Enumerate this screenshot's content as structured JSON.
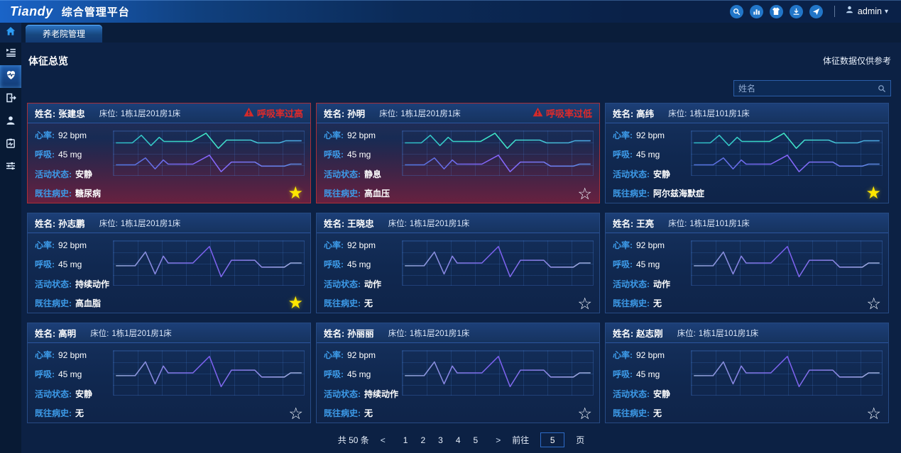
{
  "header": {
    "logo": "Tiandy",
    "product": "综合管理平台",
    "user": "admin",
    "icons": [
      "search",
      "bar-chart",
      "shirt",
      "download",
      "send"
    ]
  },
  "tabbar": {
    "active_tab": "养老院管理",
    "home_icon": "home"
  },
  "sidebar": {
    "items": [
      "device-list",
      "heart-monitor",
      "door-exit",
      "user",
      "medical-record",
      "sliders"
    ],
    "active": "heart-monitor"
  },
  "page": {
    "title": "体征总览",
    "disclaimer": "体征数据仅供参考"
  },
  "search": {
    "placeholder": "姓名"
  },
  "labels": {
    "name": "姓名:",
    "bed": "床位:",
    "heart_rate": "心率:",
    "breath": "呼吸:",
    "activity": "活动状态:",
    "history": "既往病史:"
  },
  "icons": {
    "star_filled": "★",
    "star_outline": "☆",
    "caret": "▾",
    "prev": "<",
    "next": ">"
  },
  "colors": {
    "alert_red": "#e02a2a",
    "star_yellow": "#ffe600",
    "label_blue": "#3d9be9",
    "wave_teal": "#35e0c8",
    "wave_purple": "#7a5cf0",
    "accent": "#2d9cf4"
  },
  "cards": [
    {
      "name": "张建忠",
      "bed": "1栋1层201房1床",
      "alarm": "呼吸率过高",
      "alert": true,
      "heart_rate": "92 bpm",
      "breath": "45 mg",
      "activity": "安静",
      "history": "糖尿病",
      "starred": true,
      "wave": "dual"
    },
    {
      "name": "孙明",
      "bed": "1栋1层201房1床",
      "alarm": "呼吸率过低",
      "alert": true,
      "heart_rate": "92 bpm",
      "breath": "45 mg",
      "activity": "静息",
      "history": "高血压",
      "starred": false,
      "wave": "dual"
    },
    {
      "name": "高纬",
      "bed": "1栋1层101房1床",
      "alarm": "",
      "alert": false,
      "heart_rate": "92 bpm",
      "breath": "45 mg",
      "activity": "安静",
      "history": "阿尔兹海默症",
      "starred": true,
      "wave": "dual"
    },
    {
      "name": "孙志鹏",
      "bed": "1栋1层201房1床",
      "alarm": "",
      "alert": false,
      "heart_rate": "92 bpm",
      "breath": "45 mg",
      "activity": "持续动作",
      "history": "高血脂",
      "starred": true,
      "wave": "single"
    },
    {
      "name": "王晓忠",
      "bed": "1栋1层201房1床",
      "alarm": "",
      "alert": false,
      "heart_rate": "92 bpm",
      "breath": "45 mg",
      "activity": "动作",
      "history": "无",
      "starred": false,
      "wave": "single"
    },
    {
      "name": "王亮",
      "bed": "1栋1层101房1床",
      "alarm": "",
      "alert": false,
      "heart_rate": "92 bpm",
      "breath": "45 mg",
      "activity": "动作",
      "history": "无",
      "starred": false,
      "wave": "single"
    },
    {
      "name": "高明",
      "bed": "1栋1层201房1床",
      "alarm": "",
      "alert": false,
      "heart_rate": "92 bpm",
      "breath": "45 mg",
      "activity": "安静",
      "history": "无",
      "starred": false,
      "wave": "single"
    },
    {
      "name": "孙丽丽",
      "bed": "1栋1层201房1床",
      "alarm": "",
      "alert": false,
      "heart_rate": "92 bpm",
      "breath": "45 mg",
      "activity": "持续动作",
      "history": "无",
      "starred": false,
      "wave": "single"
    },
    {
      "name": "赵志刚",
      "bed": "1栋1层101房1床",
      "alarm": "",
      "alert": false,
      "heart_rate": "92 bpm",
      "breath": "45 mg",
      "activity": "安静",
      "history": "无",
      "starred": false,
      "wave": "single"
    }
  ],
  "sparkline": {
    "teal": [
      [
        0,
        17
      ],
      [
        24,
        17
      ],
      [
        37,
        6
      ],
      [
        51,
        21
      ],
      [
        63,
        9
      ],
      [
        70,
        15
      ],
      [
        110,
        15
      ],
      [
        131,
        3
      ],
      [
        149,
        25
      ],
      [
        161,
        13
      ],
      [
        196,
        13
      ],
      [
        206,
        17
      ],
      [
        238,
        17
      ],
      [
        247,
        14
      ],
      [
        270,
        14
      ]
    ],
    "purple": [
      [
        0,
        49
      ],
      [
        28,
        49
      ],
      [
        43,
        39
      ],
      [
        57,
        55
      ],
      [
        69,
        42
      ],
      [
        76,
        48
      ],
      [
        112,
        48
      ],
      [
        136,
        35
      ],
      [
        153,
        59
      ],
      [
        168,
        45
      ],
      [
        202,
        45
      ],
      [
        212,
        51
      ],
      [
        245,
        51
      ],
      [
        254,
        48
      ],
      [
        270,
        48
      ]
    ],
    "single": [
      [
        0,
        36
      ],
      [
        28,
        36
      ],
      [
        43,
        16
      ],
      [
        57,
        48
      ],
      [
        69,
        22
      ],
      [
        76,
        32
      ],
      [
        112,
        32
      ],
      [
        136,
        8
      ],
      [
        153,
        52
      ],
      [
        168,
        28
      ],
      [
        202,
        28
      ],
      [
        212,
        38
      ],
      [
        245,
        38
      ],
      [
        254,
        32
      ],
      [
        270,
        32
      ]
    ]
  },
  "pagination": {
    "total": "共 50 条",
    "pages": [
      "1",
      "2",
      "3",
      "4",
      "5"
    ],
    "goto_label": "前往",
    "goto_value": "5",
    "unit": "页"
  }
}
